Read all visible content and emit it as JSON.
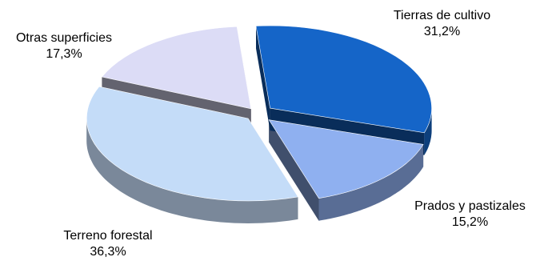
{
  "chart_data": {
    "type": "pie",
    "style": "3d-exploded",
    "title": "",
    "slices": [
      {
        "label": "Tierras de cultivo",
        "value": 31.2,
        "display": "31,2%",
        "color": "#1565c8"
      },
      {
        "label": "Prados y pastizales",
        "value": 15.2,
        "display": "15,2%",
        "color": "#8fb0f0"
      },
      {
        "label": "Terreno forestal",
        "value": 36.3,
        "display": "36,3%",
        "color": "#c4dcf8"
      },
      {
        "label": "Otras superficies",
        "value": 17.3,
        "display": "17,3%",
        "color": "#dcdcf6"
      }
    ]
  }
}
